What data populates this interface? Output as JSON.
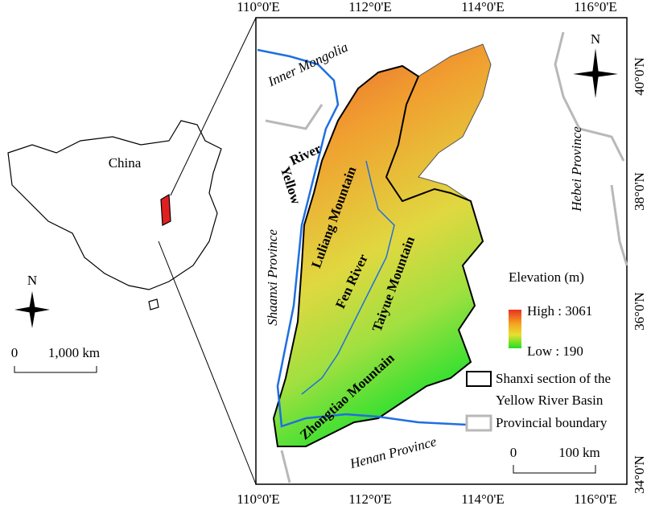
{
  "inset": {
    "title": "China",
    "north": "N",
    "scale": {
      "start": "0",
      "end": "1,000 km"
    }
  },
  "map": {
    "top_ticks": [
      "110°0'E",
      "112°0'E",
      "114°0'E",
      "116°0'E"
    ],
    "bottom_ticks": [
      "110°0'E",
      "112°0'E",
      "114°0'E",
      "116°0'E"
    ],
    "right_ticks": [
      "40°0'N",
      "38°0'N",
      "36°0'N",
      "34°0'N"
    ],
    "north": "N",
    "labels": {
      "inner_mongolia": "Inner Mongolia",
      "yellow": "Yellow",
      "river": "River",
      "shaanxi": "Shaanxi Province",
      "luliang": "Luliang Mountain",
      "fen": "Fen River",
      "taiyue": "Taiyue Mountain",
      "zhongtiao": "Zhongtiao Mountain",
      "hebei": "Hebei Province",
      "henan": "Henan Province"
    },
    "legend": {
      "title": "Elevation (m)",
      "high": "High : 3061",
      "low": "Low : 190",
      "basin_line1": "Shanxi section of the",
      "basin_line2": "Yellow River Basin",
      "boundary": "Provincial boundary"
    },
    "scale": {
      "start": "0",
      "end": "100 km"
    }
  }
}
